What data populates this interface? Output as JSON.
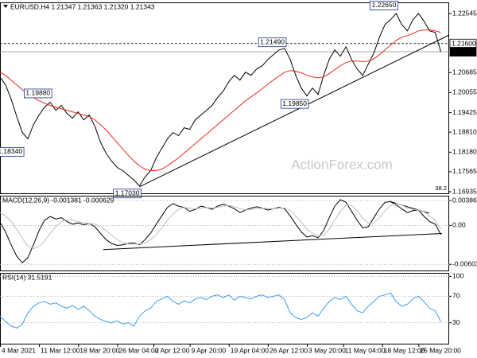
{
  "chart_data": [
    {
      "type": "line",
      "title": "EURUSD,H4  1.21347 1.21363 1.21320 1.21343",
      "watermark": "ActionForex.com",
      "fib_label": "38.2",
      "xlim": [
        0,
        80.5
      ],
      "ylim": [
        1.16885,
        1.22872
      ],
      "yticks": [
        1.22545,
        1.20685,
        1.20055,
        1.19425,
        {
          "value": 1.1881,
          "label": "1.18810"
        },
        {
          "value": 1.1818,
          "label": "1.18180"
        },
        1.17565,
        1.16935
      ],
      "series": [
        {
          "color": "#000000",
          "values": [
            1.2055,
            1.203,
            1.1985,
            1.193,
            1.188,
            1.186,
            1.1905,
            1.1935,
            1.196,
            1.1975,
            1.195,
            1.1965,
            1.194,
            1.1925,
            1.1945,
            1.192,
            1.1935,
            1.19,
            1.185,
            1.1815,
            1.179,
            1.177,
            1.176,
            1.1745,
            1.173,
            1.1712,
            1.174,
            1.176,
            1.18,
            1.183,
            1.186,
            1.188,
            1.187,
            1.1895,
            1.189,
            1.192,
            1.1935,
            1.195,
            1.1965,
            1.199,
            1.201,
            1.204,
            1.206,
            1.2045,
            1.207,
            1.206,
            1.208,
            1.209,
            1.211,
            1.2125,
            1.214,
            1.2145,
            1.211,
            1.206,
            1.202,
            1.1995,
            1.202,
            1.2,
            1.206,
            1.211,
            1.214,
            1.212,
            1.215,
            1.211,
            1.208,
            1.206,
            1.2095,
            1.213,
            1.218,
            1.222,
            1.2235,
            1.2255,
            1.222,
            1.22,
            1.2235,
            1.2255,
            1.223,
            1.22,
            1.2195,
            1.2134
          ]
        },
        {
          "color": "#e8291c",
          "values": [
            1.207,
            1.206,
            1.2045,
            1.203,
            1.2015,
            1.2,
            1.199,
            1.198,
            1.1972,
            1.1965,
            1.196,
            1.1955,
            1.195,
            1.1945,
            1.194,
            1.1935,
            1.193,
            1.192,
            1.1905,
            1.1888,
            1.1868,
            1.1848,
            1.1828,
            1.1808,
            1.179,
            1.1775,
            1.1765,
            1.176,
            1.176,
            1.1765,
            1.1775,
            1.1788,
            1.18,
            1.1815,
            1.183,
            1.1845,
            1.186,
            1.1875,
            1.189,
            1.1905,
            1.192,
            1.1935,
            1.195,
            1.1965,
            1.198,
            1.1992,
            1.2005,
            1.2018,
            1.2032,
            1.2045,
            1.2058,
            1.207,
            1.2075,
            1.2073,
            1.2068,
            1.206,
            1.2055,
            1.2052,
            1.2055,
            1.2065,
            1.2078,
            1.209,
            1.21,
            1.2105,
            1.2105,
            1.2103,
            1.2105,
            1.2112,
            1.2125,
            1.214,
            1.2155,
            1.217,
            1.218,
            1.2185,
            1.2192,
            1.22,
            1.2203,
            1.2203,
            1.22,
            1.2195
          ]
        }
      ],
      "trendlines": [
        {
          "color": "#000000",
          "x": [
            25,
            80.5
          ],
          "values": [
            1.1709,
            1.2187
          ]
        }
      ],
      "price_lines": [
        {
          "value": 1.216,
          "label": "1.21600",
          "line_style": "dashed",
          "color": "#000000"
        },
        {
          "value": 1.21343,
          "label": "1.21343",
          "line_style": "solid",
          "color": "#8c8c8c"
        }
      ],
      "annotations": [
        {
          "label": "1.18340",
          "value": 1.1834,
          "x": 4
        },
        {
          "label": "1.19880",
          "value": 1.1988,
          "x": 9
        },
        {
          "label": "1.17030",
          "value": 1.1703,
          "x": 25
        },
        {
          "label": "1.21490",
          "value": 1.2149,
          "x": 51
        },
        {
          "label": "1.19850",
          "value": 1.1985,
          "x": 55
        },
        {
          "label": "1.22650",
          "value": 1.2265,
          "x": 71
        }
      ]
    },
    {
      "type": "line",
      "title": "MACD(12,26,9) -0.001381 -0.000629",
      "xlim": [
        0,
        80.5
      ],
      "ylim": [
        -0.007,
        0.0045
      ],
      "grid": true,
      "yticks": [
        0.003864,
        {
          "value": 0,
          "label": "0.00"
        },
        -0.006038
      ],
      "series": [
        {
          "color": "#000000",
          "values": [
            0.0005,
            -0.001,
            -0.003,
            -0.0048,
            -0.0058,
            -0.005,
            -0.003,
            -0.0008,
            0.0008,
            0.0014,
            0.001,
            0.0012,
            0.0006,
            0.0002,
            0.0004,
            0.0001,
            0.0003,
            -0.0002,
            -0.0012,
            -0.0022,
            -0.0028,
            -0.0031,
            -0.003,
            -0.0028,
            -0.0027,
            -0.003,
            -0.0022,
            -0.0012,
            0.0002,
            0.0015,
            0.0028,
            0.0034,
            0.003,
            0.0028,
            0.0022,
            0.0025,
            0.003,
            0.0028,
            0.0025,
            0.003,
            0.0033,
            0.003,
            0.0026,
            0.002,
            0.0024,
            0.0027,
            0.0029,
            0.0027,
            0.0024,
            0.0026,
            0.0028,
            0.0026,
            0.0015,
            0.0002,
            -0.001,
            -0.0018,
            -0.0016,
            -0.0019,
            -0.0008,
            0.0012,
            0.003,
            0.004,
            0.0036,
            0.0022,
            0.0008,
            -0.0004,
            -0.0002,
            0.0012,
            0.0026,
            0.0036,
            0.0037,
            0.0032,
            0.0026,
            0.002,
            0.0023,
            0.0024,
            0.0014,
            0.0006,
            0.0002,
            -0.0014
          ]
        },
        {
          "color": "#c0c0c0",
          "values": [
            0.002,
            0.0015,
            0.0006,
            -0.0006,
            -0.002,
            -0.0032,
            -0.0036,
            -0.0033,
            -0.0024,
            -0.0012,
            -0.0002,
            0.0006,
            0.0009,
            0.0008,
            0.0006,
            0.0004,
            0.0003,
            0.0002,
            -0.0002,
            -0.0008,
            -0.0015,
            -0.0022,
            -0.0027,
            -0.0029,
            -0.0029,
            -0.0029,
            -0.0027,
            -0.0022,
            -0.0014,
            -0.0004,
            0.0008,
            0.0018,
            0.0025,
            0.0028,
            0.0027,
            0.0026,
            0.0027,
            0.0028,
            0.0027,
            0.0028,
            0.003,
            0.0031,
            0.0029,
            0.0026,
            0.0024,
            0.0025,
            0.0026,
            0.0027,
            0.0026,
            0.0026,
            0.0027,
            0.0027,
            0.0023,
            0.0015,
            0.0005,
            -0.0006,
            -0.0012,
            -0.0016,
            -0.0015,
            -0.0006,
            0.0008,
            0.0022,
            0.0031,
            0.0031,
            0.0023,
            0.0011,
            0.0004,
            0.0004,
            0.0012,
            0.0023,
            0.0031,
            0.0034,
            0.0032,
            0.0027,
            0.0025,
            0.0024,
            0.0021,
            0.0015,
            0.0008,
            -0.0006
          ]
        }
      ],
      "trendlines": [
        {
          "color": "#000000",
          "x": [
            18.5,
            79.2
          ],
          "values": [
            -0.00375,
            -0.00125
          ]
        },
        {
          "color": "#000000",
          "x": [
            69.8,
            76.9
          ],
          "values": [
            0.00375,
            0.0019
          ]
        }
      ]
    },
    {
      "type": "line",
      "title": "RSI(14) 31.5191",
      "xlim": [
        0,
        80.5
      ],
      "ylim": [
        -1.5,
        104
      ],
      "grid": true,
      "yticks": [
        100,
        70,
        30
      ],
      "xticks": [
        {
          "value": 0,
          "label": "4 Mar 2021"
        },
        {
          "value": 7,
          "label": "11 Mar 12:00"
        },
        {
          "value": 14,
          "label": "18 Mar 20:00"
        },
        {
          "value": 21,
          "label": "26 Mar 04:00"
        },
        {
          "value": 27.5,
          "label": "2 Apr 12:00"
        },
        {
          "value": 34,
          "label": "9 Apr 20:00"
        },
        {
          "value": 41,
          "label": "19 Apr 04:00"
        },
        {
          "value": 48,
          "label": "26 Apr 12:00"
        },
        {
          "value": 55,
          "label": "3 May 20:00"
        },
        {
          "value": 61.5,
          "label": "11 May 04:00"
        },
        {
          "value": 68.5,
          "label": "18 May 12:00"
        },
        {
          "value": 75,
          "label": "25 May 20:00"
        }
      ],
      "series": [
        {
          "color": "#3d9df5",
          "values": [
            40,
            32,
            25,
            22,
            28,
            45,
            55,
            60,
            62,
            58,
            60,
            55,
            52,
            56,
            50,
            55,
            48,
            40,
            35,
            32,
            30,
            33,
            28,
            30,
            25,
            40,
            48,
            52,
            62,
            66,
            70,
            62,
            58,
            63,
            60,
            66,
            68,
            65,
            70,
            72,
            68,
            72,
            64,
            70,
            68,
            66,
            70,
            72,
            68,
            70,
            72,
            65,
            45,
            38,
            35,
            38,
            45,
            40,
            52,
            62,
            68,
            65,
            70,
            58,
            48,
            45,
            55,
            62,
            70,
            72,
            75,
            62,
            55,
            58,
            66,
            70,
            62,
            52,
            48,
            31.5191
          ]
        }
      ]
    }
  ]
}
